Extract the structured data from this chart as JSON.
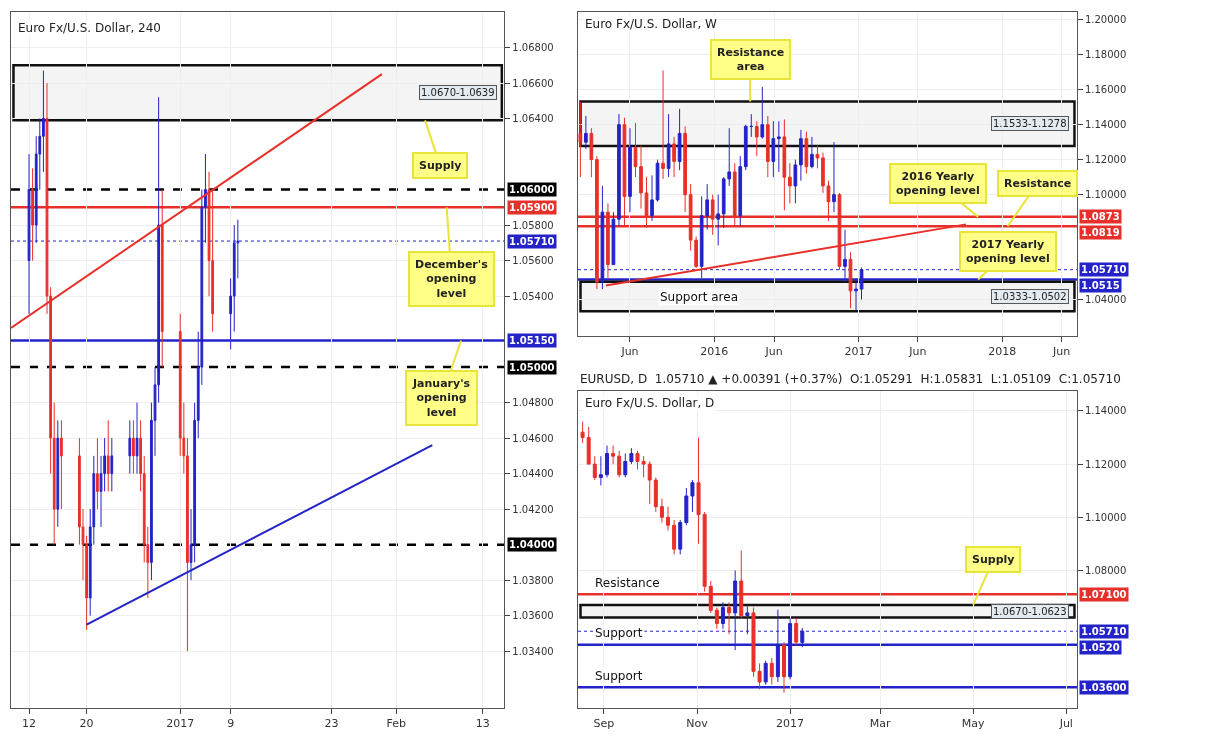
{
  "chart_data": [
    {
      "type": "candlestick",
      "title": "Euro Fx/U.S. Dollar, 240",
      "grid": true,
      "x": [
        "2016-12-12T00:00",
        "2016-12-12T12:00",
        "2016-12-13T00:00",
        "2016-12-13T12:00",
        "2016-12-14T00:00",
        "2016-12-14T12:00",
        "2016-12-15T00:00",
        "2016-12-15T12:00",
        "2016-12-16T00:00",
        "2016-12-16T12:00",
        "2016-12-19T00:00",
        "2016-12-19T12:00",
        "2016-12-20T00:00",
        "2016-12-20T12:00",
        "2016-12-21T00:00",
        "2016-12-21T12:00",
        "2016-12-22T00:00",
        "2016-12-22T12:00",
        "2016-12-23T00:00",
        "2016-12-23T12:00",
        "2016-12-26T00:00",
        "2016-12-26T12:00",
        "2016-12-27T00:00",
        "2016-12-27T12:00",
        "2016-12-28T00:00",
        "2016-12-28T12:00",
        "2016-12-29T00:00",
        "2016-12-29T12:00",
        "2016-12-30T00:00",
        "2016-12-30T12:00",
        "2017-01-02T00:00",
        "2017-01-02T12:00",
        "2017-01-03T00:00",
        "2017-01-03T12:00",
        "2017-01-04T00:00",
        "2017-01-04T12:00",
        "2017-01-05T00:00",
        "2017-01-05T12:00",
        "2017-01-06T00:00",
        "2017-01-06T12:00",
        "2017-01-09T00:00",
        "2017-01-09T12:00",
        "2017-01-10T00:00"
      ],
      "ohlc": [
        [
          1.056,
          1.062,
          1.053,
          1.06
        ],
        [
          1.06,
          1.0612,
          1.056,
          1.058
        ],
        [
          1.058,
          1.063,
          1.057,
          1.062
        ],
        [
          1.062,
          1.064,
          1.06,
          1.063
        ],
        [
          1.063,
          1.0667,
          1.061,
          1.064
        ],
        [
          1.064,
          1.066,
          1.053,
          1.054
        ],
        [
          1.054,
          1.0545,
          1.044,
          1.046
        ],
        [
          1.046,
          1.048,
          1.04,
          1.042
        ],
        [
          1.042,
          1.047,
          1.041,
          1.046
        ],
        [
          1.046,
          1.047,
          1.042,
          1.045
        ],
        [
          1.045,
          1.046,
          1.04,
          1.041
        ],
        [
          1.041,
          1.042,
          1.038,
          1.04
        ],
        [
          1.04,
          1.0405,
          1.0352,
          1.037
        ],
        [
          1.037,
          1.042,
          1.036,
          1.041
        ],
        [
          1.041,
          1.045,
          1.04,
          1.044
        ],
        [
          1.044,
          1.046,
          1.042,
          1.043
        ],
        [
          1.043,
          1.045,
          1.041,
          1.044
        ],
        [
          1.044,
          1.046,
          1.043,
          1.045
        ],
        [
          1.045,
          1.047,
          1.043,
          1.044
        ],
        [
          1.044,
          1.046,
          1.043,
          1.045
        ],
        [
          1.045,
          1.047,
          1.044,
          1.046
        ],
        [
          1.046,
          1.047,
          1.044,
          1.045
        ],
        [
          1.045,
          1.048,
          1.044,
          1.046
        ],
        [
          1.046,
          1.047,
          1.043,
          1.044
        ],
        [
          1.044,
          1.045,
          1.039,
          1.04
        ],
        [
          1.04,
          1.041,
          1.037,
          1.039
        ],
        [
          1.039,
          1.048,
          1.038,
          1.047
        ],
        [
          1.047,
          1.05,
          1.045,
          1.049
        ],
        [
          1.049,
          1.0652,
          1.048,
          1.058
        ],
        [
          1.058,
          1.06,
          1.05,
          1.052
        ],
        [
          1.052,
          1.053,
          1.045,
          1.046
        ],
        [
          1.046,
          1.048,
          1.044,
          1.045
        ],
        [
          1.045,
          1.046,
          1.034,
          1.039
        ],
        [
          1.039,
          1.042,
          1.038,
          1.04
        ],
        [
          1.04,
          1.048,
          1.039,
          1.047
        ],
        [
          1.047,
          1.052,
          1.046,
          1.05
        ],
        [
          1.05,
          1.06,
          1.049,
          1.059
        ],
        [
          1.059,
          1.062,
          1.057,
          1.06
        ],
        [
          1.06,
          1.061,
          1.054,
          1.056
        ],
        [
          1.056,
          1.06,
          1.052,
          1.053
        ],
        [
          1.053,
          1.055,
          1.051,
          1.054
        ],
        [
          1.054,
          1.058,
          1.052,
          1.057
        ],
        [
          1.057,
          1.0583,
          1.055,
          1.0571
        ]
      ],
      "series": [
        {
          "type": "line",
          "color": "#e8302a",
          "x": [
            "2016-12-09T12:00",
            "2017-01-30"
          ],
          "values": [
            1.0522,
            1.0665
          ]
        },
        {
          "type": "line",
          "color": "#2323c8",
          "x": [
            "2016-12-20",
            "2017-02-06"
          ],
          "values": [
            1.0355,
            1.0456
          ]
        }
      ],
      "xlim": [
        "2016-12-09T12:00",
        "2017-02-16"
      ],
      "xticks": [
        {
          "value": "2016-12-12",
          "label": "12"
        },
        {
          "value": "2016-12-20",
          "label": "20"
        },
        {
          "value": "2017-01-02",
          "label": "2017"
        },
        {
          "value": "2017-01-09",
          "label": "9"
        },
        {
          "value": "2017-01-23",
          "label": "23"
        },
        {
          "value": "2017-02-01",
          "label": "Feb"
        },
        {
          "value": "2017-02-13",
          "label": "13"
        }
      ],
      "ylim": [
        1.0308,
        1.07
      ],
      "yticks": [
        {
          "value": 1.068,
          "label": "1.06800"
        },
        {
          "value": 1.066,
          "label": "1.06600"
        },
        {
          "value": 1.064,
          "label": "1.06400"
        },
        {
          "value": 1.058,
          "label": "1.05800"
        },
        {
          "value": 1.056,
          "label": "1.05600"
        },
        {
          "value": 1.054,
          "label": "1.05400"
        },
        {
          "value": 1.048,
          "label": "1.04800"
        },
        {
          "value": 1.046,
          "label": "1.04600"
        },
        {
          "value": 1.044,
          "label": "1.04400"
        },
        {
          "value": 1.042,
          "label": "1.04200"
        },
        {
          "value": 1.038,
          "label": "1.03800"
        },
        {
          "value": 1.036,
          "label": "1.03600"
        },
        {
          "value": 1.034,
          "label": "1.03400"
        }
      ],
      "ref_lines": [
        {
          "axis": "y",
          "value": 1.0571,
          "label": "1.05710",
          "color": "#2323c8",
          "line_style": "dotted"
        },
        {
          "axis": "y",
          "value": 1.06,
          "label": "1.06000",
          "color": "#000000",
          "line_style": "dashed"
        },
        {
          "axis": "y",
          "value": 1.059,
          "label": "1.05900",
          "color": "#e8302a",
          "line_style": "solid"
        },
        {
          "axis": "y",
          "value": 1.0515,
          "label": "1.05150",
          "color": "#2323c8",
          "line_style": "solid"
        },
        {
          "axis": "y",
          "value": 1.05,
          "label": "1.05000",
          "color": "#000000",
          "line_style": "dashed"
        },
        {
          "axis": "y",
          "value": 1.04,
          "label": "1.04000",
          "color": "#000000",
          "line_style": "dashed"
        }
      ],
      "bands": [
        {
          "axis": "y",
          "from": 1.0639,
          "to": 1.067,
          "label": "1.0670-1.0639"
        }
      ],
      "annotations": [
        {
          "text": "Supply",
          "x": "2017-02-05",
          "y": 1.0639
        },
        {
          "text": "December's\nopening\nlevel",
          "x": "2017-02-08",
          "y": 1.059
        },
        {
          "text": "January's\nopening\nlevel",
          "x": "2017-02-10",
          "y": 1.0515
        }
      ]
    },
    {
      "type": "candlestick",
      "title": "Euro Fx/U.S. Dollar, W",
      "grid": true,
      "x": [
        "2015-01-26",
        "2015-02-09",
        "2015-02-23",
        "2015-03-09",
        "2015-03-23",
        "2015-04-06",
        "2015-04-20",
        "2015-05-04",
        "2015-05-18",
        "2015-06-01",
        "2015-06-15",
        "2015-06-29",
        "2015-07-13",
        "2015-07-27",
        "2015-08-10",
        "2015-08-24",
        "2015-09-07",
        "2015-09-21",
        "2015-10-05",
        "2015-10-19",
        "2015-11-02",
        "2015-11-16",
        "2015-11-30",
        "2015-12-14",
        "2015-12-28",
        "2016-01-11",
        "2016-01-25",
        "2016-02-08",
        "2016-02-22",
        "2016-03-07",
        "2016-03-21",
        "2016-04-04",
        "2016-04-18",
        "2016-05-02",
        "2016-05-16",
        "2016-05-30",
        "2016-06-13",
        "2016-06-27",
        "2016-07-11",
        "2016-07-25",
        "2016-08-08",
        "2016-08-22",
        "2016-09-05",
        "2016-09-19",
        "2016-10-03",
        "2016-10-17",
        "2016-10-31",
        "2016-11-14",
        "2016-11-28",
        "2016-12-12",
        "2016-12-26",
        "2017-01-09"
      ],
      "ohlc": [
        [
          1.135,
          1.153,
          1.11,
          1.13
        ],
        [
          1.13,
          1.145,
          1.126,
          1.135
        ],
        [
          1.135,
          1.138,
          1.11,
          1.12
        ],
        [
          1.12,
          1.122,
          1.046,
          1.05
        ],
        [
          1.05,
          1.105,
          1.046,
          1.09
        ],
        [
          1.09,
          1.095,
          1.052,
          1.06
        ],
        [
          1.06,
          1.09,
          1.06,
          1.086
        ],
        [
          1.086,
          1.146,
          1.082,
          1.14
        ],
        [
          1.14,
          1.144,
          1.082,
          1.099
        ],
        [
          1.099,
          1.138,
          1.09,
          1.127
        ],
        [
          1.127,
          1.141,
          1.11,
          1.116
        ],
        [
          1.116,
          1.128,
          1.092,
          1.101
        ],
        [
          1.101,
          1.11,
          1.081,
          1.088
        ],
        [
          1.088,
          1.111,
          1.085,
          1.097
        ],
        [
          1.097,
          1.12,
          1.096,
          1.118
        ],
        [
          1.118,
          1.171,
          1.109,
          1.115
        ],
        [
          1.115,
          1.146,
          1.11,
          1.129
        ],
        [
          1.129,
          1.133,
          1.11,
          1.119
        ],
        [
          1.119,
          1.149,
          1.114,
          1.135
        ],
        [
          1.135,
          1.139,
          1.09,
          1.1
        ],
        [
          1.1,
          1.106,
          1.068,
          1.074
        ],
        [
          1.074,
          1.076,
          1.058,
          1.059
        ],
        [
          1.059,
          1.099,
          1.0524,
          1.088
        ],
        [
          1.088,
          1.106,
          1.08,
          1.097
        ],
        [
          1.097,
          1.1,
          1.077,
          1.086
        ],
        [
          1.086,
          1.1,
          1.071,
          1.089
        ],
        [
          1.089,
          1.11,
          1.081,
          1.109
        ],
        [
          1.109,
          1.138,
          1.105,
          1.113
        ],
        [
          1.113,
          1.118,
          1.082,
          1.088
        ],
        [
          1.088,
          1.122,
          1.082,
          1.116
        ],
        [
          1.116,
          1.14,
          1.114,
          1.139
        ],
        [
          1.139,
          1.146,
          1.133,
          1.139
        ],
        [
          1.139,
          1.142,
          1.122,
          1.133
        ],
        [
          1.133,
          1.1616,
          1.132,
          1.14
        ],
        [
          1.14,
          1.145,
          1.11,
          1.119
        ],
        [
          1.119,
          1.142,
          1.11,
          1.132
        ],
        [
          1.132,
          1.142,
          1.113,
          1.133
        ],
        [
          1.133,
          1.143,
          1.091,
          1.11
        ],
        [
          1.11,
          1.118,
          1.095,
          1.105
        ],
        [
          1.105,
          1.12,
          1.095,
          1.117
        ],
        [
          1.117,
          1.137,
          1.108,
          1.132
        ],
        [
          1.132,
          1.136,
          1.112,
          1.116
        ],
        [
          1.116,
          1.133,
          1.115,
          1.123
        ],
        [
          1.123,
          1.128,
          1.115,
          1.121
        ],
        [
          1.121,
          1.124,
          1.101,
          1.105
        ],
        [
          1.105,
          1.108,
          1.085,
          1.096
        ],
        [
          1.096,
          1.13,
          1.09,
          1.1
        ],
        [
          1.1,
          1.101,
          1.057,
          1.059
        ],
        [
          1.059,
          1.08,
          1.05,
          1.063
        ],
        [
          1.063,
          1.067,
          1.035,
          1.045
        ],
        [
          1.045,
          1.052,
          1.034,
          1.046
        ],
        [
          1.046,
          1.0583,
          1.04,
          1.0571
        ]
      ],
      "series": [
        {
          "type": "line",
          "color": "#e8302a",
          "x": [
            "2015-04-01",
            "2017-10-01"
          ],
          "values": [
            1.048,
            1.083
          ]
        }
      ],
      "xlim": [
        "2015-01-20",
        "2018-07-10"
      ],
      "xticks": [
        {
          "value": "2015-06-01",
          "label": "Jun"
        },
        {
          "value": "2016-01-01",
          "label": "2016"
        },
        {
          "value": "2016-06-01",
          "label": "Jun"
        },
        {
          "value": "2017-01-01",
          "label": "2017"
        },
        {
          "value": "2017-06-01",
          "label": "Jun"
        },
        {
          "value": "2018-01-01",
          "label": "2018"
        },
        {
          "value": "2018-06-01",
          "label": "Jun"
        }
      ],
      "ylim": [
        1.0194,
        1.2044
      ],
      "yticks": [
        {
          "value": 1.2,
          "label": "1.20000"
        },
        {
          "value": 1.18,
          "label": "1.18000"
        },
        {
          "value": 1.16,
          "label": "1.16000"
        },
        {
          "value": 1.14,
          "label": "1.14000"
        },
        {
          "value": 1.12,
          "label": "1.12000"
        },
        {
          "value": 1.1,
          "label": "1.10000"
        },
        {
          "value": 1.04,
          "label": "1.04000"
        }
      ],
      "ref_lines": [
        {
          "axis": "y",
          "value": 1.0873,
          "label": "1.0873",
          "color": "#e8302a",
          "line_style": "solid"
        },
        {
          "axis": "y",
          "value": 1.0819,
          "label": "1.0819",
          "color": "#e8302a",
          "line_style": "solid"
        },
        {
          "axis": "y",
          "value": 1.0571,
          "label": "1.05710",
          "color": "#2323c8",
          "line_style": "dotted"
        },
        {
          "axis": "y",
          "value": 1.0515,
          "label": "1.0515",
          "color": "#2323c8",
          "line_style": "solid"
        }
      ],
      "bands": [
        {
          "axis": "y",
          "from": 1.1278,
          "to": 1.1533,
          "label": "1.1533-1.1278"
        },
        {
          "axis": "y",
          "from": 1.0333,
          "to": 1.0502,
          "label": "1.0333-1.0502"
        }
      ],
      "annotations": [
        {
          "text": "Resistance\narea",
          "x": "2016-04-01",
          "y": 1.1533
        },
        {
          "text": "2016 Yearly\nopening level",
          "x": "2017-11-01",
          "y": 1.0873
        },
        {
          "text": "Resistance",
          "x": "2018-01-15",
          "y": 1.0819
        },
        {
          "text": "2017 Yearly\nopening level",
          "x": "2017-11-01",
          "y": 1.0515
        },
        "Support area"
      ]
    },
    {
      "type": "candlestick",
      "title": "Euro Fx/U.S. Dollar, D",
      "subtitle": "EURUSD, D  1.05710 ▲ +0.00391 (+0.37%)  O:1.05291  H:1.05831  L:1.05109  C:1.05710",
      "grid": true,
      "x": [
        "2016-08-18",
        "2016-08-22",
        "2016-08-26",
        "2016-08-30",
        "2016-09-03",
        "2016-09-07",
        "2016-09-11",
        "2016-09-15",
        "2016-09-19",
        "2016-09-23",
        "2016-09-27",
        "2016-10-01",
        "2016-10-05",
        "2016-10-09",
        "2016-10-13",
        "2016-10-17",
        "2016-10-21",
        "2016-10-25",
        "2016-10-29",
        "2016-11-02",
        "2016-11-06",
        "2016-11-10",
        "2016-11-14",
        "2016-11-18",
        "2016-11-22",
        "2016-11-26",
        "2016-11-30",
        "2016-12-04",
        "2016-12-08",
        "2016-12-12",
        "2016-12-16",
        "2016-12-20",
        "2016-12-24",
        "2016-12-28",
        "2017-01-01",
        "2017-01-05",
        "2017-01-09"
      ],
      "ohlc": [
        [
          1.132,
          1.136,
          1.128,
          1.13
        ],
        [
          1.13,
          1.134,
          1.12,
          1.12
        ],
        [
          1.12,
          1.123,
          1.114,
          1.115
        ],
        [
          1.115,
          1.123,
          1.112,
          1.116
        ],
        [
          1.116,
          1.127,
          1.115,
          1.124
        ],
        [
          1.124,
          1.127,
          1.12,
          1.123
        ],
        [
          1.123,
          1.125,
          1.115,
          1.116
        ],
        [
          1.116,
          1.124,
          1.115,
          1.121
        ],
        [
          1.121,
          1.126,
          1.12,
          1.124
        ],
        [
          1.124,
          1.125,
          1.118,
          1.121
        ],
        [
          1.121,
          1.123,
          1.115,
          1.12
        ],
        [
          1.12,
          1.121,
          1.105,
          1.114
        ],
        [
          1.114,
          1.115,
          1.102,
          1.104
        ],
        [
          1.104,
          1.107,
          1.098,
          1.1
        ],
        [
          1.1,
          1.104,
          1.095,
          1.097
        ],
        [
          1.097,
          1.099,
          1.086,
          1.088
        ],
        [
          1.088,
          1.099,
          1.086,
          1.098
        ],
        [
          1.098,
          1.111,
          1.097,
          1.108
        ],
        [
          1.108,
          1.114,
          1.102,
          1.113
        ],
        [
          1.113,
          1.13,
          1.09,
          1.101
        ],
        [
          1.101,
          1.102,
          1.072,
          1.074
        ],
        [
          1.074,
          1.076,
          1.064,
          1.065
        ],
        [
          1.065,
          1.066,
          1.058,
          1.06
        ],
        [
          1.06,
          1.068,
          1.058,
          1.066
        ],
        [
          1.066,
          1.068,
          1.056,
          1.064
        ],
        [
          1.064,
          1.08,
          1.05,
          1.076
        ],
        [
          1.076,
          1.0875,
          1.062,
          1.063
        ],
        [
          1.063,
          1.067,
          1.056,
          1.064
        ],
        [
          1.064,
          1.066,
          1.04,
          1.042
        ],
        [
          1.042,
          1.045,
          1.0352,
          1.038
        ],
        [
          1.038,
          1.046,
          1.037,
          1.045
        ],
        [
          1.045,
          1.047,
          1.037,
          1.04
        ],
        [
          1.04,
          1.0652,
          1.038,
          1.052
        ],
        [
          1.052,
          1.053,
          1.034,
          1.04
        ],
        [
          1.04,
          1.062,
          1.039,
          1.06
        ],
        [
          1.06,
          1.062,
          1.052,
          1.053
        ],
        [
          1.05291,
          1.05831,
          1.05109,
          1.0571
        ]
      ],
      "xlim": [
        "2016-08-15",
        "2017-07-08"
      ],
      "xticks": [
        {
          "value": "2016-09-01",
          "label": "Sep"
        },
        {
          "value": "2016-11-01",
          "label": "Nov"
        },
        {
          "value": "2017-01-01",
          "label": "2017"
        },
        {
          "value": "2017-03-01",
          "label": "Mar"
        },
        {
          "value": "2017-05-01",
          "label": "May"
        },
        {
          "value": "2017-07-01",
          "label": "Jul"
        }
      ],
      "ylim": [
        1.0282,
        1.1474
      ],
      "yticks": [
        {
          "value": 1.14,
          "label": "1.14000"
        },
        {
          "value": 1.12,
          "label": "1.12000"
        },
        {
          "value": 1.1,
          "label": "1.10000"
        },
        {
          "value": 1.08,
          "label": "1.08000"
        }
      ],
      "ref_lines": [
        {
          "axis": "y",
          "value": 1.071,
          "label": "1.07100",
          "color": "#e8302a",
          "line_style": "solid"
        },
        {
          "axis": "y",
          "value": 1.0571,
          "label": "1.05710",
          "color": "#2323c8",
          "line_style": "dotted"
        },
        {
          "axis": "y",
          "value": 1.052,
          "label": "1.0520",
          "color": "#2323c8",
          "line_style": "solid"
        },
        {
          "axis": "y",
          "value": 1.036,
          "label": "1.03600",
          "color": "#2323c8",
          "line_style": "solid"
        }
      ],
      "bands": [
        {
          "axis": "y",
          "from": 1.0623,
          "to": 1.067,
          "label": "1.0670-1.0623"
        }
      ],
      "annotations": [
        {
          "text": "Supply",
          "x": "2017-05-01",
          "y": 1.067
        },
        "Resistance",
        "Support",
        "Support"
      ]
    }
  ]
}
